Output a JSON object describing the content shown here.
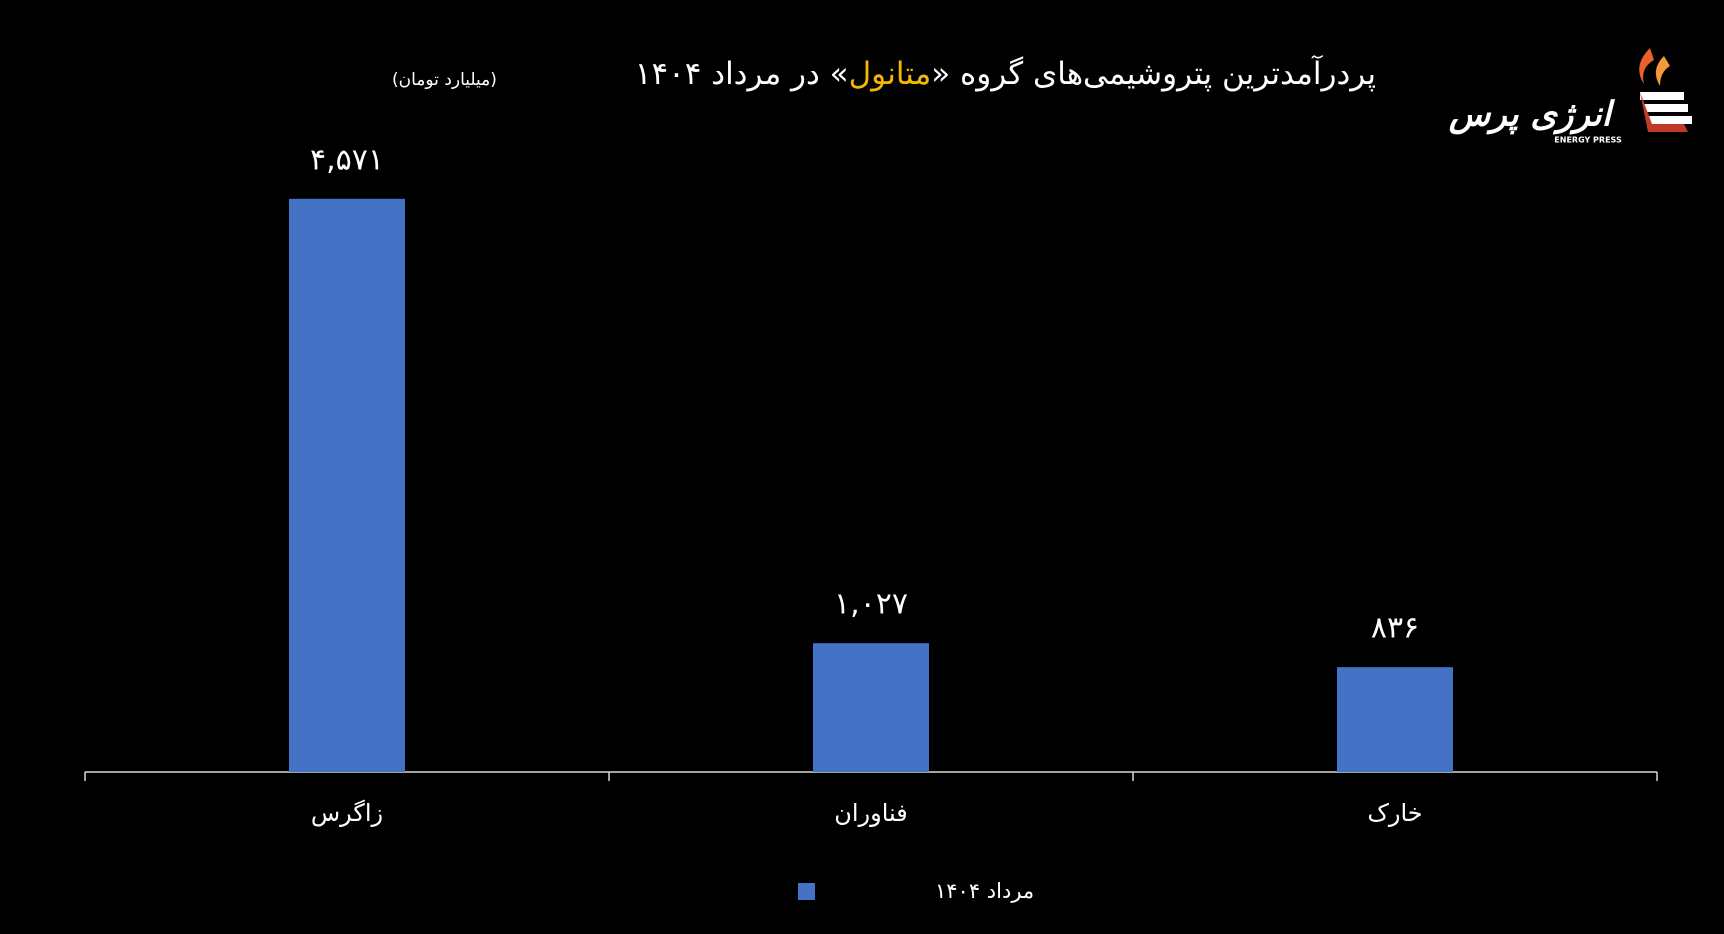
{
  "chart_data": {
    "type": "bar",
    "title_parts": [
      "پردرآمدترین پتروشیمی‌های گروه «",
      "متانول",
      "» در مرداد ۱۴۰۴"
    ],
    "subtitle": "(میلیارد تومان)",
    "categories": [
      "زاگرس",
      "فناوران",
      "خارک"
    ],
    "series": [
      {
        "name": "مرداد ۱۴۰۴",
        "color": "#4472c4",
        "values": [
          4571,
          1027,
          836
        ],
        "value_labels": [
          "۴,۵۷۱",
          "۱,۰۲۷",
          "۸۳۶"
        ]
      }
    ],
    "ylim": [
      0,
      5000
    ],
    "highlight_color": "#f5b800"
  },
  "logo": {
    "name": "انرژی پرس",
    "subtitle": "ENERGY PRESS"
  }
}
